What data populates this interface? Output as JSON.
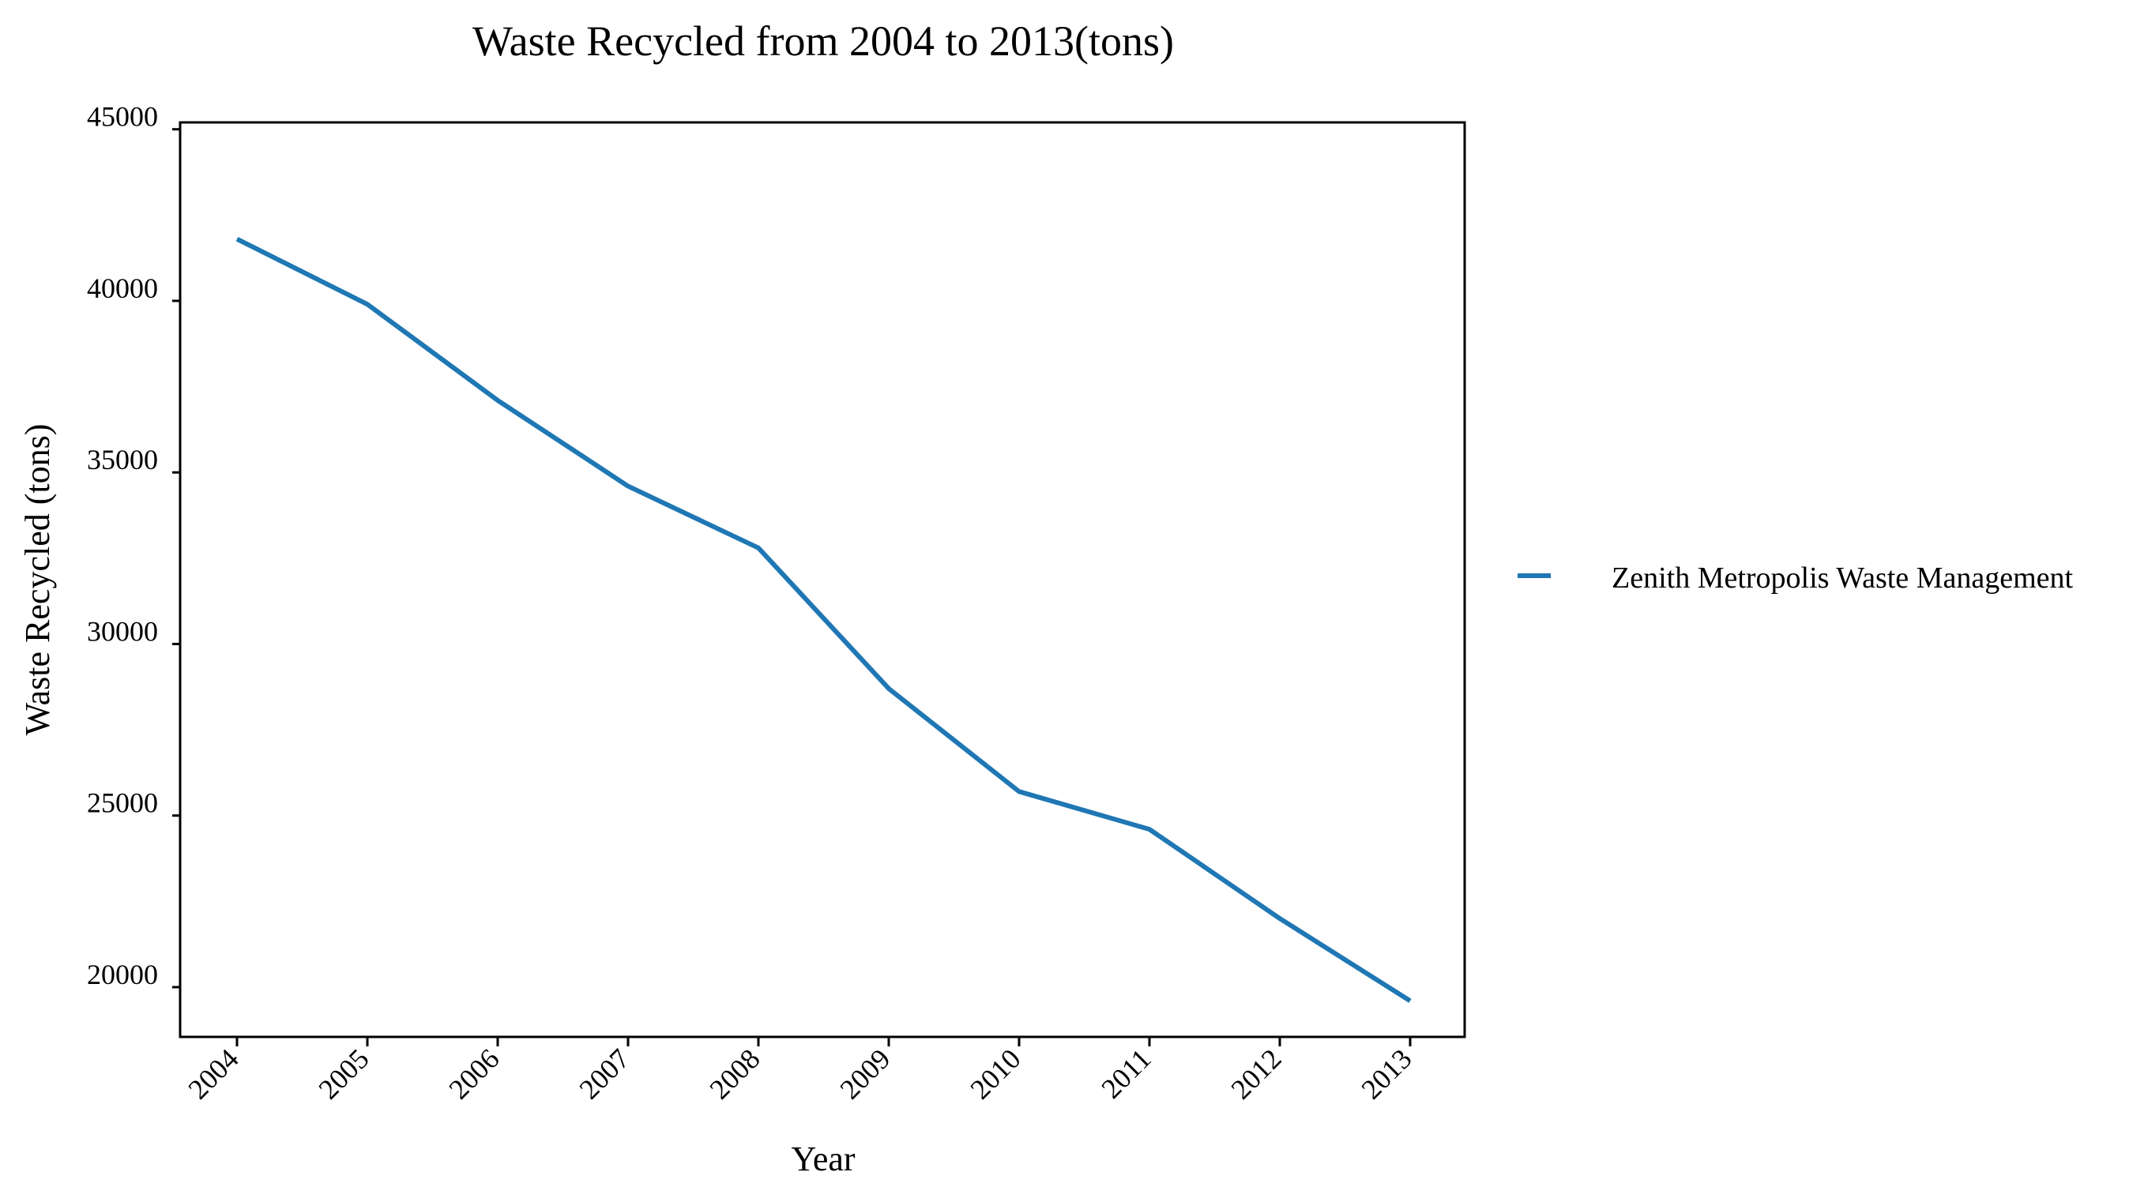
{
  "chart_data": {
    "type": "line",
    "title": "Waste Recycled from 2004 to 2013(tons)",
    "xlabel": "Year",
    "ylabel": "Waste Recycled (tons)",
    "x": [
      "2004",
      "2005",
      "2006",
      "2007",
      "2008",
      "2009",
      "2010",
      "2011",
      "2012",
      "2013"
    ],
    "yticks": [
      "20000",
      "25000",
      "30000",
      "35000",
      "40000",
      "45000"
    ],
    "ylim": [
      18550,
      45200
    ],
    "grid": false,
    "legend_position": "right",
    "series": [
      {
        "name": "Zenith Metropolis Waste Management",
        "color": "#1f77b4",
        "values": [
          41800,
          39900,
          37100,
          34600,
          32800,
          28700,
          25700,
          24600,
          22000,
          19600
        ]
      }
    ]
  }
}
